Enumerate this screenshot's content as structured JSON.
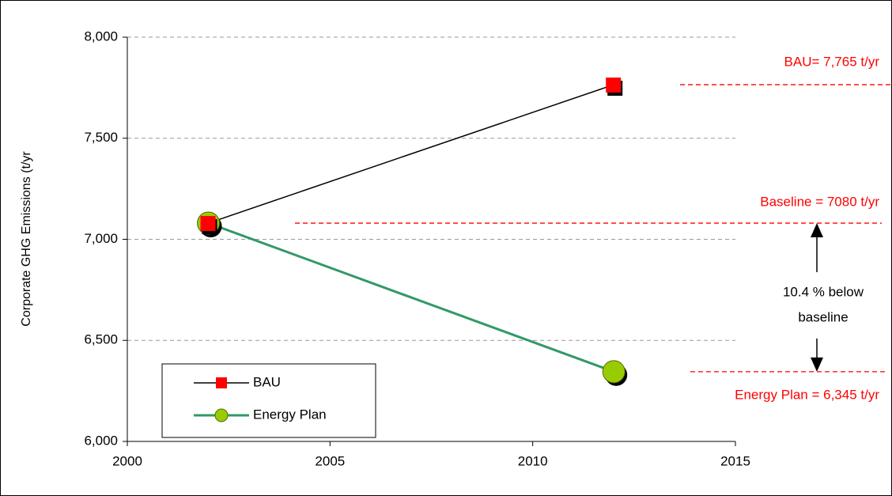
{
  "chart_data": {
    "type": "line",
    "ylabel": "Corporate GHG Emissions (t/yr",
    "x": [
      2002,
      2012
    ],
    "series": [
      {
        "name": "BAU",
        "color": "#000000",
        "marker": "square",
        "marker_color": "#ff0000",
        "values": [
          7080,
          7765
        ]
      },
      {
        "name": "Energy Plan",
        "color": "#339966",
        "marker": "circle",
        "marker_color": "#99cc00",
        "values": [
          7080,
          6345
        ]
      }
    ],
    "xlim": [
      2000,
      2015
    ],
    "xticks": [
      2000,
      2005,
      2010,
      2015
    ],
    "ylim": [
      6000,
      8000
    ],
    "yticks": [
      {
        "value": 6000,
        "label": "6,000"
      },
      {
        "value": 6500,
        "label": "6,500"
      },
      {
        "value": 7000,
        "label": "7,000"
      },
      {
        "value": 7500,
        "label": "7,500"
      },
      {
        "value": 8000,
        "label": "8,000"
      }
    ],
    "grid": true,
    "legend": "lower left",
    "annotations": [
      {
        "text": "BAU=  7,765 t/yr",
        "value": 7765,
        "color": "#ff0000"
      },
      {
        "text": "Baseline = 7080 t/yr",
        "value": 7080,
        "color": "#ff0000"
      },
      {
        "text": "Energy Plan = 6,345 t/yr",
        "value": 6345,
        "color": "#ff0000"
      }
    ],
    "reduction_label": [
      "10.4 % below",
      "baseline"
    ]
  }
}
